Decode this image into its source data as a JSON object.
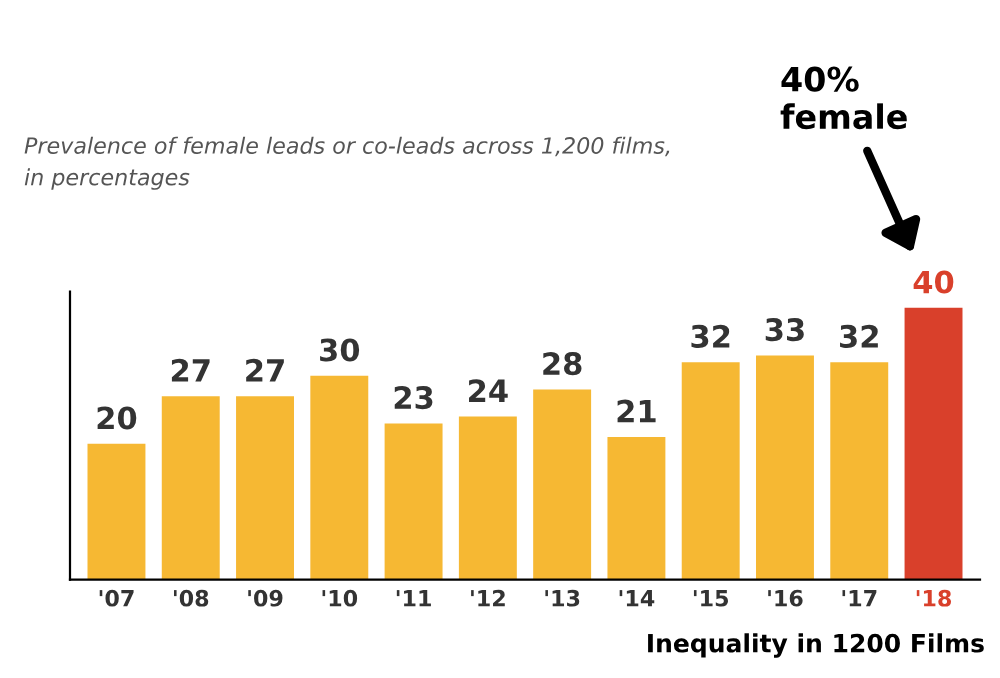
{
  "chart_data": {
    "type": "bar",
    "subtitle": "Prevalence of female leads or co-leads across 1,200 films,\nin percentages",
    "categories": [
      "'07",
      "'08",
      "'09",
      "'10",
      "'11",
      "'12",
      "'13",
      "'14",
      "'15",
      "'16",
      "'17",
      "'18"
    ],
    "values": [
      20,
      27,
      27,
      30,
      23,
      24,
      28,
      21,
      32,
      33,
      32,
      40
    ],
    "colors": [
      "#f6b833",
      "#f6b833",
      "#f6b833",
      "#f6b833",
      "#f6b833",
      "#f6b833",
      "#f6b833",
      "#f6b833",
      "#f6b833",
      "#f6b833",
      "#f6b833",
      "#d9402b"
    ],
    "data_labels": true,
    "tick_labels": "x",
    "grid": false,
    "legend": false,
    "annotations": [
      "40%\nfemale",
      "Inequality in 1200 Films"
    ]
  }
}
